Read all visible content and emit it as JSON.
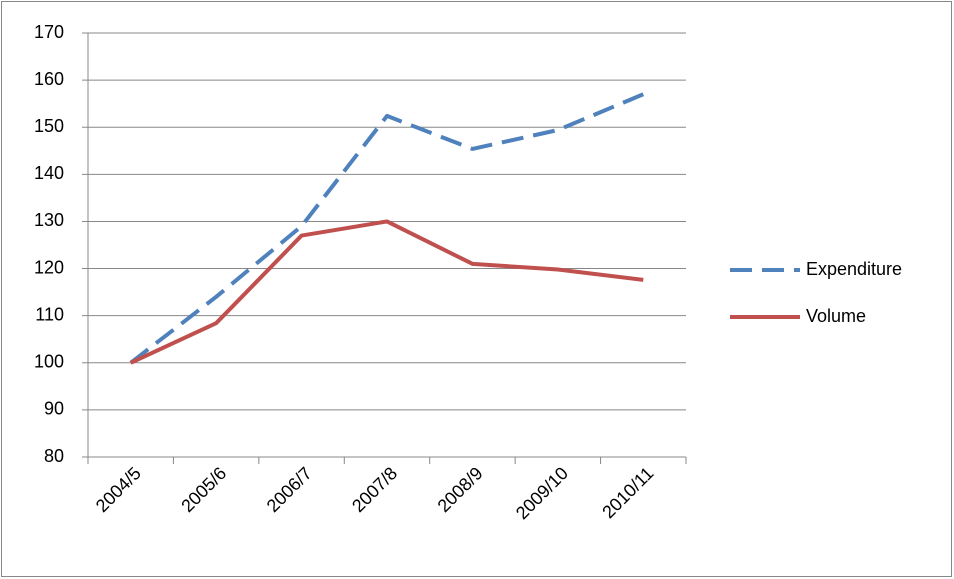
{
  "chart_data": {
    "type": "line",
    "categories": [
      "2004/5",
      "2005/6",
      "2006/7",
      "2007/8",
      "2008/9",
      "2009/10",
      "2010/11"
    ],
    "series": [
      {
        "name": "Expenditure",
        "color": "#4f81bd",
        "line_style": "dashed",
        "values": [
          100,
          114,
          129,
          152.4,
          145.4,
          149.4,
          157
        ]
      },
      {
        "name": "Volume",
        "color": "#c0504d",
        "line_style": "solid",
        "values": [
          100,
          108.4,
          127,
          130,
          121,
          119.8,
          117.6
        ]
      }
    ],
    "ylim": [
      80,
      170
    ],
    "yticks": [
      80,
      90,
      100,
      110,
      120,
      130,
      140,
      150,
      160,
      170
    ],
    "grid": true,
    "legend": "right"
  }
}
